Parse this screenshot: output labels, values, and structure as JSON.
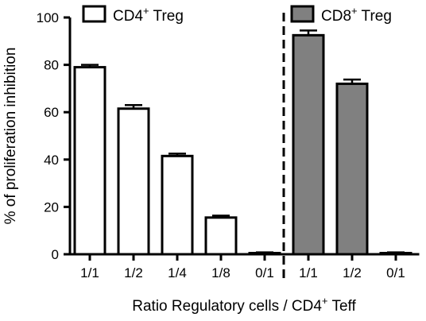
{
  "chart_data": {
    "type": "bar",
    "ylabel": "% of proliferation inhibition",
    "xlabel_main": "Ratio Regulatory cells / CD4",
    "xlabel_sup": "+",
    "xlabel_tail": " Teff",
    "ylim": [
      0,
      100
    ],
    "yticks": [
      0,
      20,
      40,
      60,
      80,
      100
    ],
    "grid": false,
    "legend_placement": "top",
    "groups": [
      {
        "name_main": "CD4",
        "name_sup": "+",
        "name_tail": " Treg",
        "fill": "#ffffff",
        "categories": [
          "1/1",
          "1/2",
          "1/4",
          "1/8",
          "0/1"
        ],
        "values": [
          79,
          61.5,
          41.5,
          15.5,
          0.5
        ],
        "errors": [
          1,
          1.5,
          1,
          0.8,
          0.3
        ]
      },
      {
        "name_main": "CD8",
        "name_sup": "+",
        "name_tail": " Treg",
        "fill": "#808080",
        "categories": [
          "1/1",
          "1/2",
          "0/1"
        ],
        "values": [
          92.5,
          72,
          0.5
        ],
        "errors": [
          2,
          1.8,
          0.3
        ]
      }
    ],
    "divider": "dashed vertical line between groups"
  }
}
